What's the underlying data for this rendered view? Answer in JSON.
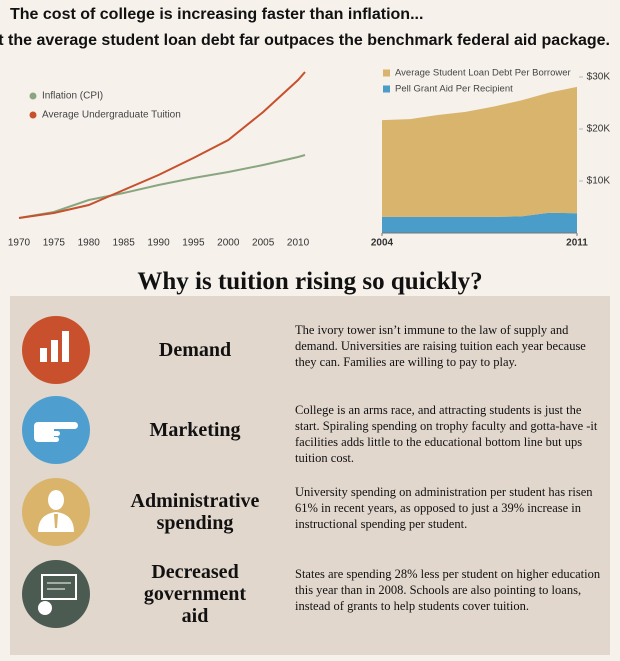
{
  "header": {
    "title": "The cost of college is increasing faster than inflation...",
    "subtitle": "yet the average student loan debt far outpaces the benchmark federal aid package."
  },
  "chart_data": [
    {
      "type": "line",
      "x": [
        1970,
        1975,
        1980,
        1985,
        1990,
        1995,
        2000,
        2005,
        2010,
        2011
      ],
      "xlim": [
        1970,
        2012
      ],
      "xticks": [
        1970,
        1975,
        1980,
        1985,
        1990,
        1995,
        2000,
        2005,
        2010
      ],
      "ylim": [
        0,
        160
      ],
      "legend": "upper left",
      "series": [
        {
          "name": "Inflation (CPI)",
          "color": "#8aa680",
          "values": [
            10,
            16,
            28,
            35,
            43,
            50,
            56,
            63,
            71,
            73
          ]
        },
        {
          "name": "Average Undergraduate Tuition",
          "color": "#c7502d",
          "values": [
            10,
            15,
            23,
            38,
            53,
            70,
            88,
            116,
            148,
            156
          ]
        }
      ]
    },
    {
      "type": "stacked-area",
      "x": [
        2004,
        2005,
        2006,
        2007,
        2008,
        2009,
        2010,
        2011
      ],
      "xlim": [
        2004,
        2011
      ],
      "xticks": [
        2004,
        2011
      ],
      "ylim": [
        0,
        30000
      ],
      "yticks": [
        {
          "value": 10000,
          "label": "$10K"
        },
        {
          "value": 20000,
          "label": "$20K"
        },
        {
          "value": 30000,
          "label": "$30K"
        }
      ],
      "y_axis_side": "right",
      "legend": "upper left",
      "series": [
        {
          "name": "Average Student Loan Debt Per Borrower",
          "color": "#d9b46c",
          "values": [
            18600,
            18800,
            19600,
            20200,
            21200,
            22300,
            23100,
            24300
          ]
        },
        {
          "name": "Pell Grant Aid Per Recipient",
          "color": "#4a9cc9",
          "values": [
            3100,
            3100,
            3100,
            3100,
            3100,
            3200,
            3900,
            3800
          ]
        }
      ]
    }
  ],
  "section": {
    "title": "Why is tuition rising so quickly?",
    "items": [
      {
        "heading": [
          "Demand"
        ],
        "text": "The ivory tower isn’t immune to the law of supply and demand. Universities are raising tuition each year because they can. Families are willing to pay to play."
      },
      {
        "heading": [
          "Marketing"
        ],
        "text": "College is an arms race, and attracting students is just the start. Spiraling spending on trophy faculty and gotta-have -it facilities adds little to the educational bottom line but ups tuition cost."
      },
      {
        "heading": [
          "Administrative",
          "spending"
        ],
        "text": "University spending on administration per student has risen 61% in recent years, as opposed to just a 39% increase in instructional spending per student."
      },
      {
        "heading": [
          "Decreased",
          "government",
          "aid"
        ],
        "text": "States are spending 28% less per student on higher education this year than in 2008. Schools are also pointing to loans, instead of grants to help students cover tuition."
      }
    ]
  }
}
